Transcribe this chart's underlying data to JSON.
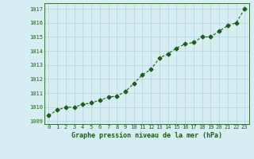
{
  "x": [
    0,
    1,
    2,
    3,
    4,
    5,
    6,
    7,
    8,
    9,
    10,
    11,
    12,
    13,
    14,
    15,
    16,
    17,
    18,
    19,
    20,
    21,
    22,
    23
  ],
  "y": [
    1009.4,
    1009.8,
    1010.0,
    1010.0,
    1010.2,
    1010.3,
    1010.5,
    1010.7,
    1010.8,
    1011.1,
    1011.7,
    1012.3,
    1012.7,
    1013.5,
    1013.8,
    1014.2,
    1014.5,
    1014.6,
    1015.0,
    1015.0,
    1015.4,
    1015.8,
    1016.0,
    1017.0
  ],
  "line_color": "#1a5c1a",
  "marker": "D",
  "marker_size": 2.5,
  "bg_color": "#d6eef2",
  "grid_color": "#b8d8e0",
  "xlabel": "Graphe pression niveau de la mer (hPa)",
  "xlabel_color": "#1a5c1a",
  "tick_color": "#1a5c1a",
  "ylim": [
    1008.8,
    1017.4
  ],
  "yticks": [
    1009,
    1010,
    1011,
    1012,
    1013,
    1014,
    1015,
    1016,
    1017
  ],
  "xlim": [
    -0.5,
    23.5
  ],
  "xticks": [
    0,
    1,
    2,
    3,
    4,
    5,
    6,
    7,
    8,
    9,
    10,
    11,
    12,
    13,
    14,
    15,
    16,
    17,
    18,
    19,
    20,
    21,
    22,
    23
  ]
}
